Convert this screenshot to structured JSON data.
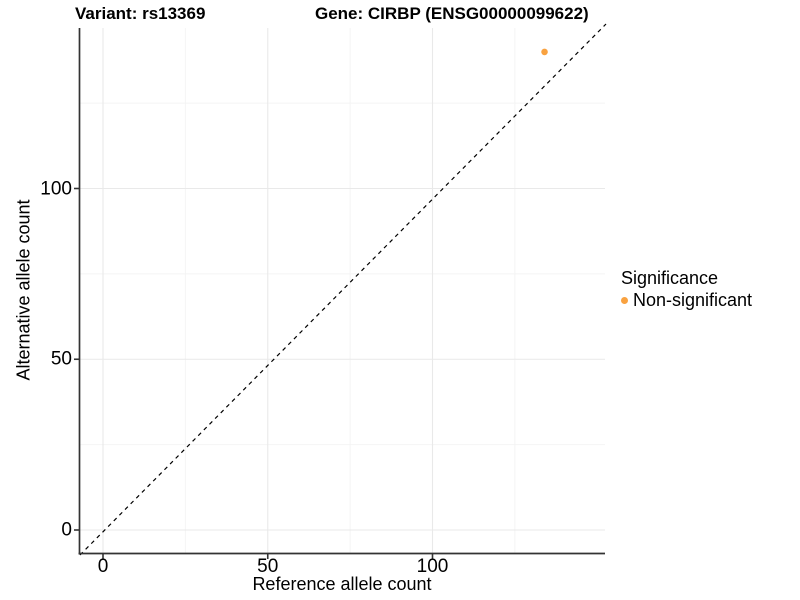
{
  "header": {
    "variant_title": "Variant: rs13369",
    "gene_title": "Gene: CIRBP (ENSG00000099622)"
  },
  "axes": {
    "x": {
      "label": "Reference allele count",
      "tick_labels": [
        "0",
        "50",
        "100"
      ]
    },
    "y": {
      "label": "Alternative allele count",
      "tick_labels": [
        "0",
        "50",
        "100"
      ]
    }
  },
  "legend": {
    "title": "Significance",
    "items": [
      {
        "label": "Non-significant",
        "color": "#F9A240"
      }
    ]
  },
  "chart_data": {
    "type": "scatter",
    "title": "Variant: rs13369 | Gene: CIRBP (ENSG00000099622)",
    "xlabel": "Reference allele count",
    "ylabel": "Alternative allele count",
    "xlim": [
      -7,
      152
    ],
    "ylim": [
      -7,
      147
    ],
    "x_ticks": [
      0,
      50,
      100
    ],
    "y_ticks": [
      0,
      50,
      100
    ],
    "x_minor_ticks": [
      25,
      75,
      125
    ],
    "y_minor_ticks": [
      25,
      75,
      125
    ],
    "grid": true,
    "series": [
      {
        "name": "Non-significant",
        "color": "#F9A240",
        "points": [
          {
            "x": 134,
            "y": 140
          }
        ]
      }
    ],
    "reference_line": {
      "equation": "y = x",
      "style": "dashed",
      "color": "#000000"
    },
    "legend": {
      "title": "Significance",
      "position": "right"
    }
  }
}
